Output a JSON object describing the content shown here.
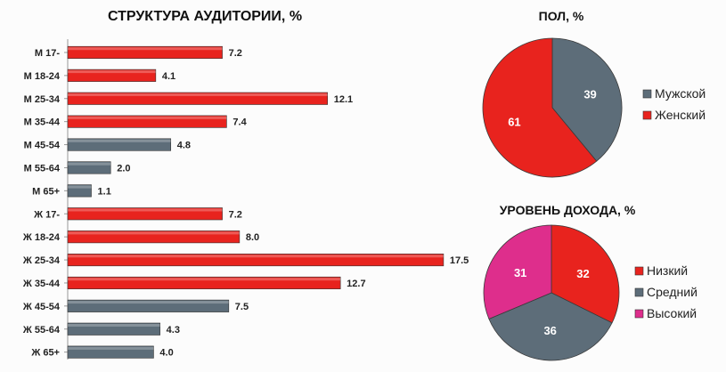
{
  "chart_data": [
    {
      "type": "bar",
      "orientation": "horizontal",
      "title": "СТРУКТУРА АУДИТОРИИ, %",
      "categories": [
        "М 17-",
        "М 18-24",
        "М 25-34",
        "М 35-44",
        "М 45-54",
        "М 55-64",
        "М 65+",
        "Ж 17-",
        "Ж 18-24",
        "Ж 25-34",
        "Ж 35-44",
        "Ж 45-54",
        "Ж 55-64",
        "Ж 65+"
      ],
      "values": [
        7.2,
        4.1,
        12.1,
        7.4,
        4.8,
        2.0,
        1.1,
        7.2,
        8.0,
        17.5,
        12.7,
        7.5,
        4.3,
        4.0
      ],
      "value_labels": [
        "7.2",
        "4.1",
        "12.1",
        "7.4",
        "4.8",
        "2.0",
        "1.1",
        "7.2",
        "8.0",
        "17.5",
        "12.7",
        "7.5",
        "4.3",
        "4.0"
      ],
      "colors": [
        "#e8231e",
        "#e8231e",
        "#e8231e",
        "#e8231e",
        "#5d6d79",
        "#5d6d79",
        "#5d6d79",
        "#e8231e",
        "#e8231e",
        "#e8231e",
        "#e8231e",
        "#5d6d79",
        "#5d6d79",
        "#5d6d79"
      ],
      "xlim": [
        0,
        18.5
      ]
    },
    {
      "type": "pie",
      "title": "ПОЛ, %",
      "labels": [
        "Мужской",
        "Женский"
      ],
      "values": [
        39,
        61
      ],
      "value_labels": [
        "39",
        "61"
      ],
      "colors": [
        "#5d6d79",
        "#e8231e"
      ]
    },
    {
      "type": "pie",
      "title": "УРОВЕНЬ ДОХОДА, %",
      "labels": [
        "Низкий",
        "Средний",
        "Высокий"
      ],
      "values": [
        32,
        36,
        31
      ],
      "value_labels": [
        "32",
        "36",
        "31"
      ],
      "colors": [
        "#e8231e",
        "#5d6d79",
        "#de2e8c"
      ]
    }
  ]
}
